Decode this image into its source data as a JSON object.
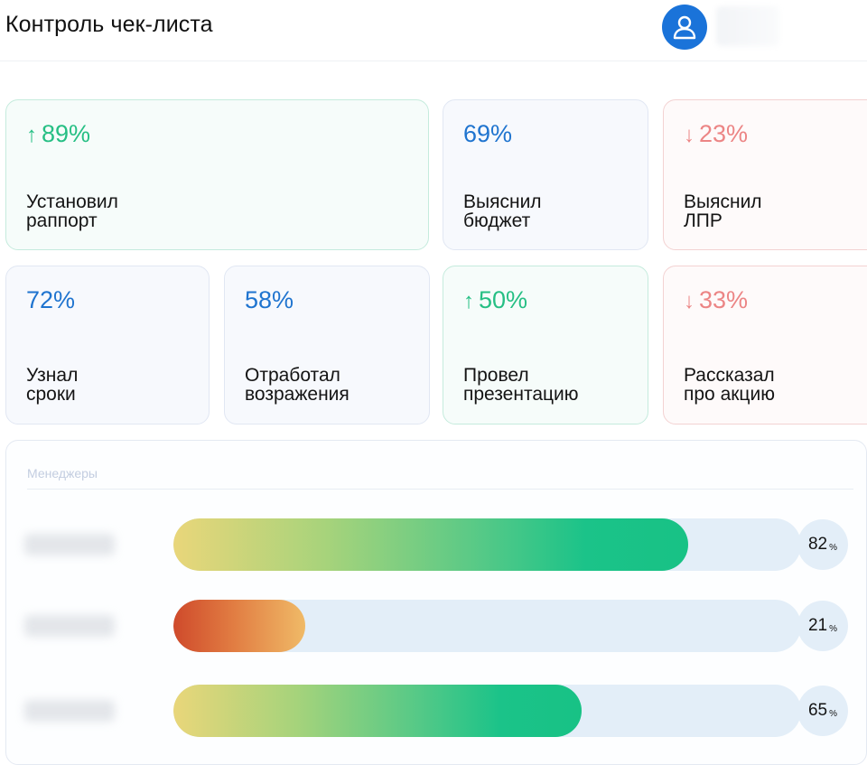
{
  "header": {
    "title": "Контроль чек-листа",
    "avatar_icon": "user-icon",
    "accent_color": "#1a73d9"
  },
  "cards": [
    {
      "value": "89%",
      "trend": "up",
      "arrow": "↑",
      "label": "Установил\nраппорт",
      "status": "green"
    },
    {
      "value": "69%",
      "trend": "none",
      "arrow": "",
      "label": "Выяснил\nбюджет",
      "status": "neutral"
    },
    {
      "value": "23%",
      "trend": "down",
      "arrow": "↓",
      "label": "Выяснил\nЛПР",
      "status": "red"
    },
    {
      "value": "72%",
      "trend": "none",
      "arrow": "",
      "label": "Узнал\nсроки",
      "status": "neutral"
    },
    {
      "value": "58%",
      "trend": "none",
      "arrow": "",
      "label": "Отработал\nвозражения",
      "status": "neutral"
    },
    {
      "value": "50%",
      "trend": "up",
      "arrow": "↑",
      "label": "Провел\nпрезентацию",
      "status": "green"
    },
    {
      "value": "33%",
      "trend": "down",
      "arrow": "↓",
      "label": "Рассказал\nпро акцию",
      "status": "red"
    }
  ],
  "managers": {
    "title": "Менеджеры",
    "rows": [
      {
        "score": 82,
        "score_text": "82",
        "unit": "%",
        "tone": "good"
      },
      {
        "score": 21,
        "score_text": "21",
        "unit": "%",
        "tone": "bad"
      },
      {
        "score": 65,
        "score_text": "65",
        "unit": "%",
        "tone": "good"
      }
    ]
  },
  "colors": {
    "positive": "#26bf84",
    "neutral": "#1f74cf",
    "negative": "#ec8585",
    "track": "#e3eef8"
  }
}
